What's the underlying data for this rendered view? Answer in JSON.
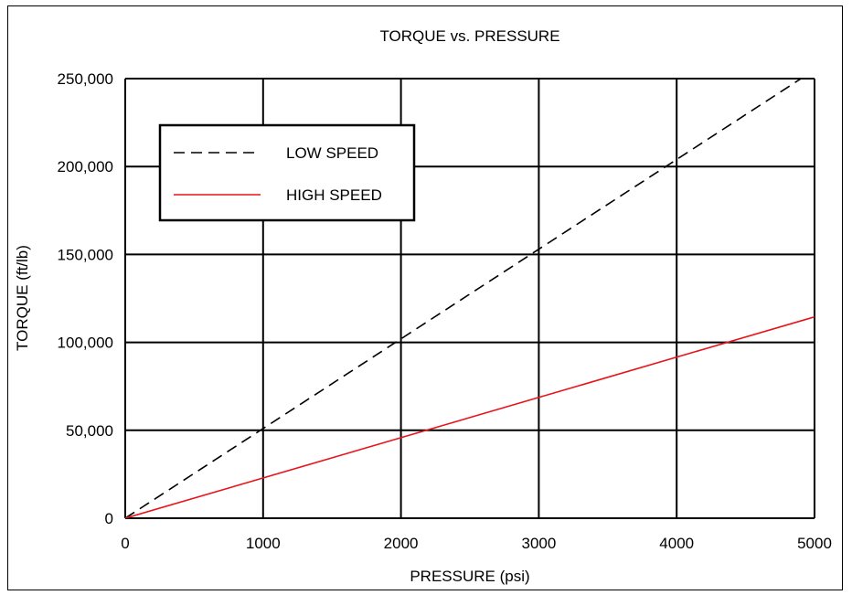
{
  "chart_data": {
    "type": "line",
    "title": "TORQUE vs. PRESSURE",
    "xlabel": "PRESSURE (psi)",
    "ylabel": "TORQUE (ft/lb)",
    "xlim": [
      0,
      5000
    ],
    "ylim": [
      0,
      250000
    ],
    "x_ticks": [
      0,
      1000,
      2000,
      3000,
      4000,
      5000
    ],
    "x_tick_labels": [
      "0",
      "1000",
      "2000",
      "3000",
      "4000",
      "5000"
    ],
    "y_ticks": [
      0,
      50000,
      100000,
      150000,
      200000,
      250000
    ],
    "y_tick_labels": [
      "0",
      "50,000",
      "100,000",
      "150,000",
      "200,000",
      "250,000"
    ],
    "grid": true,
    "legend_position": "top-left",
    "series": [
      {
        "name": "LOW SPEED",
        "color": "#000000",
        "dash": "dashed",
        "x": [
          0,
          5000
        ],
        "y": [
          0,
          255000
        ]
      },
      {
        "name": "HIGH SPEED",
        "color": "#e8141a",
        "dash": "solid",
        "x": [
          0,
          5000
        ],
        "y": [
          0,
          114500
        ]
      }
    ]
  }
}
